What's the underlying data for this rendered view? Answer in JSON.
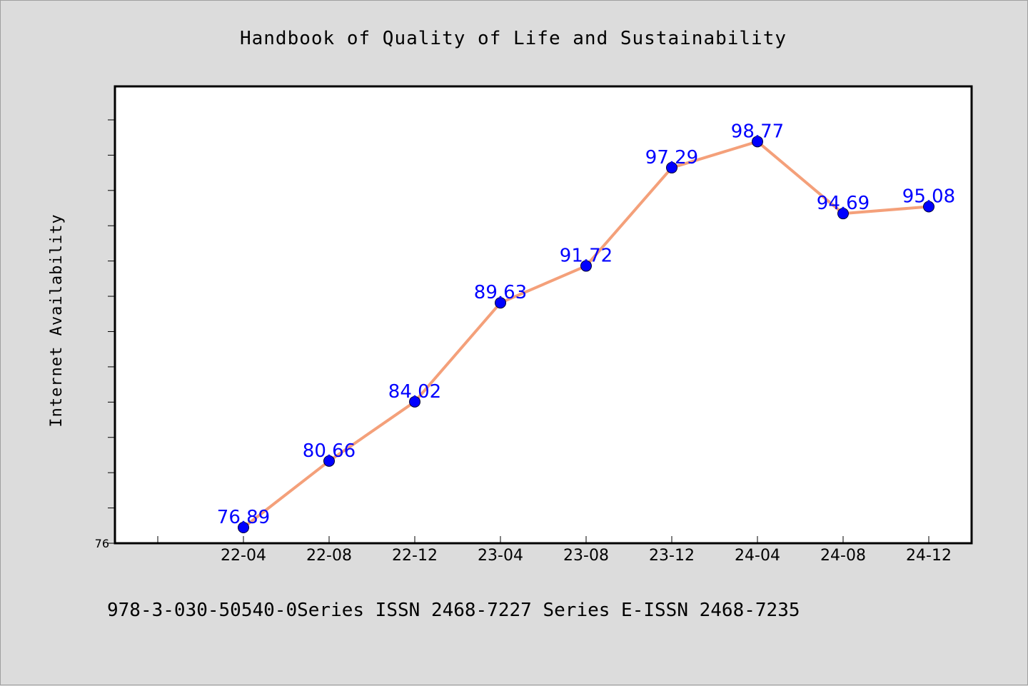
{
  "chart_data": {
    "type": "line",
    "title": "Handbook of Quality of Life and Sustainability",
    "xlabel": "",
    "ylabel": "Internet Availability",
    "categories": [
      "22-04",
      "22-08",
      "22-12",
      "23-04",
      "23-08",
      "23-12",
      "24-04",
      "24-08",
      "24-12"
    ],
    "series": [
      {
        "values": [
          76.89,
          80.66,
          84.02,
          89.63,
          91.72,
          97.29,
          98.77,
          94.69,
          95.08
        ]
      }
    ],
    "data_labels": [
      "76.89",
      "80.66",
      "84.02",
      "89.63",
      "91.72",
      "97.29",
      "98.77",
      "94.69",
      "95.08"
    ],
    "ytick_label": "76",
    "ylim": [
      76,
      101.9
    ],
    "grid": false,
    "line_color": "#f4a07a",
    "marker_color": "#0000ff",
    "label_color": "#0000ff",
    "background": "#dcdcdc",
    "plot_background": "#ffffff"
  },
  "footer": {
    "text": "978-3-030-50540-0Series ISSN 2468-7227 Series E-ISSN 2468-7235"
  }
}
